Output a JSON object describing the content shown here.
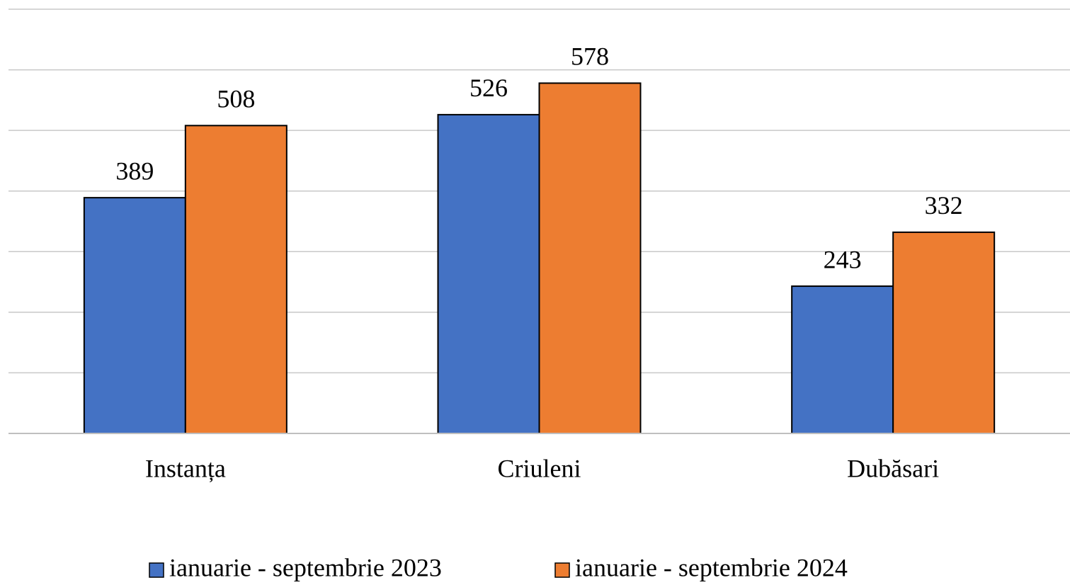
{
  "chart_data": {
    "type": "bar",
    "categories": [
      "Instanța",
      "Criuleni",
      "Dubăsari"
    ],
    "series": [
      {
        "name": "ianuarie - septembrie 2023",
        "color": "#4472c4",
        "values": [
          389,
          526,
          243
        ]
      },
      {
        "name": "ianuarie - septembrie 2024",
        "color": "#ed7d31",
        "values": [
          508,
          578,
          332
        ]
      }
    ],
    "ylim": [
      0,
      700
    ],
    "yticks": [
      0,
      100,
      200,
      300,
      400,
      500,
      600,
      700
    ],
    "grid": true,
    "legend": "bottom"
  }
}
